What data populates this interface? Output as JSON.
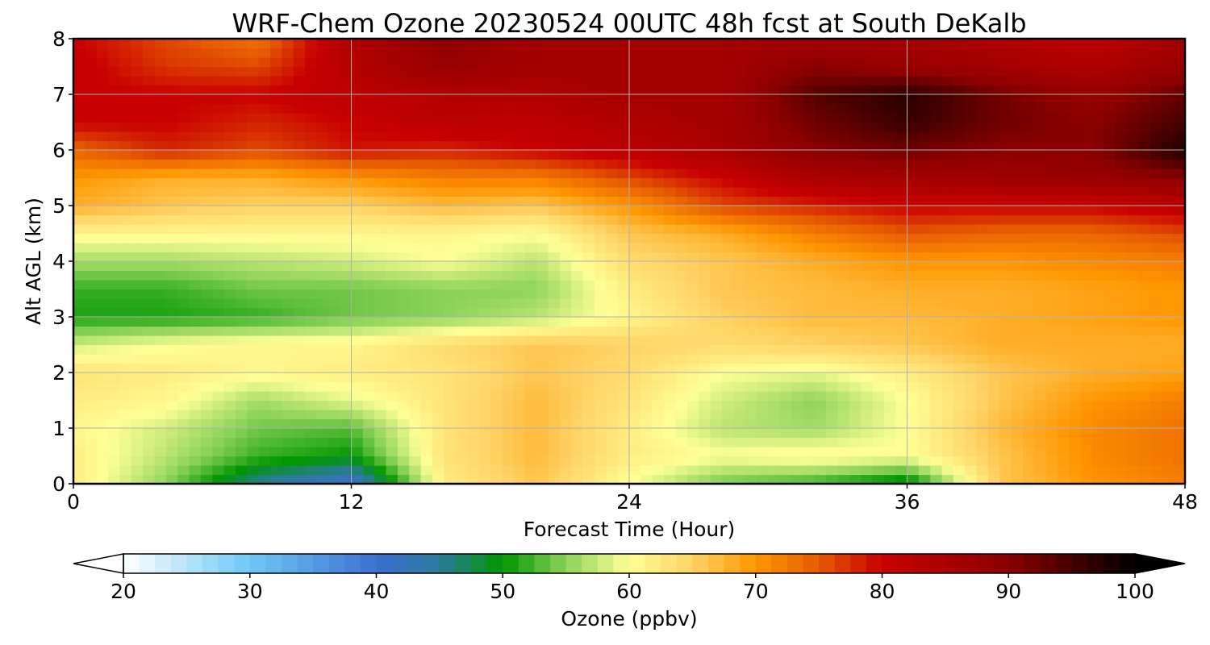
{
  "chart_data": {
    "type": "heatmap",
    "title": "WRF-Chem Ozone  20230524 00UTC 48h fcst at South DeKalb",
    "xlabel": "Forecast Time (Hour)",
    "ylabel": "Alt AGL (km)",
    "xlim": [
      0,
      48
    ],
    "ylim": [
      0,
      8
    ],
    "xticks": [
      "0",
      "12",
      "24",
      "36",
      "48"
    ],
    "yticks": [
      "0",
      "1",
      "2",
      "3",
      "4",
      "5",
      "6",
      "7",
      "8"
    ],
    "grid": true,
    "colorbar": {
      "label": "Ozone  (ppbv)",
      "range": [
        20,
        100
      ],
      "ticks": [
        "20",
        "30",
        "40",
        "50",
        "60",
        "70",
        "80",
        "90",
        "100"
      ],
      "extend": "both",
      "colors": [
        {
          "v": 20,
          "c": "#ffffff"
        },
        {
          "v": 30,
          "c": "#6ec8f5"
        },
        {
          "v": 40,
          "c": "#3d6fd1"
        },
        {
          "v": 45,
          "c": "#2a7a9a"
        },
        {
          "v": 50,
          "c": "#009600"
        },
        {
          "v": 55,
          "c": "#8cd25a"
        },
        {
          "v": 60,
          "c": "#ffff96"
        },
        {
          "v": 65,
          "c": "#ffd264"
        },
        {
          "v": 70,
          "c": "#ff9600"
        },
        {
          "v": 75,
          "c": "#e65a00"
        },
        {
          "v": 80,
          "c": "#c80000"
        },
        {
          "v": 90,
          "c": "#8c0000"
        },
        {
          "v": 100,
          "c": "#000000"
        }
      ]
    },
    "x": [
      0,
      4,
      8,
      12,
      16,
      20,
      24,
      28,
      32,
      36,
      40,
      44,
      48
    ],
    "y": [
      0,
      0.5,
      1,
      1.5,
      2,
      2.5,
      3,
      3.5,
      4,
      4.5,
      5,
      5.5,
      6,
      6.5,
      7,
      7.5,
      8
    ],
    "z": [
      [
        62,
        55,
        45,
        40,
        62,
        66,
        60,
        54,
        52,
        48,
        66,
        70,
        72
      ],
      [
        62,
        57,
        52,
        50,
        63,
        67,
        62,
        60,
        61,
        60,
        66,
        71,
        73
      ],
      [
        61,
        58,
        54,
        53,
        63,
        67,
        62,
        57,
        56,
        60,
        67,
        71,
        73
      ],
      [
        62,
        61,
        56,
        59,
        63,
        67,
        63,
        58,
        55,
        60,
        66,
        70,
        72
      ],
      [
        63,
        62,
        61,
        62,
        63,
        66,
        64,
        60,
        59,
        62,
        66,
        68,
        69
      ],
      [
        58,
        60,
        61,
        61,
        64,
        66,
        65,
        64,
        65,
        66,
        68,
        68,
        68
      ],
      [
        51,
        51,
        52,
        54,
        55,
        57,
        61,
        65,
        67,
        67,
        68,
        69,
        70
      ],
      [
        52,
        52,
        54,
        54,
        55,
        55,
        62,
        66,
        67,
        68,
        68,
        69,
        70
      ],
      [
        56,
        56,
        57,
        58,
        60,
        57,
        64,
        66,
        68,
        70,
        70,
        71,
        72
      ],
      [
        61,
        61,
        61,
        61,
        61,
        60,
        66,
        68,
        72,
        75,
        74,
        74,
        76
      ],
      [
        68,
        66,
        65,
        65,
        67,
        66,
        70,
        76,
        78,
        80,
        80,
        80,
        82
      ],
      [
        70,
        68,
        68,
        70,
        72,
        72,
        76,
        80,
        85,
        86,
        87,
        88,
        90
      ],
      [
        74,
        78,
        76,
        79,
        78,
        80,
        82,
        85,
        90,
        92,
        90,
        90,
        98
      ],
      [
        80,
        80,
        78,
        80,
        82,
        82,
        84,
        86,
        92,
        96,
        92,
        90,
        95
      ],
      [
        80,
        80,
        80,
        82,
        84,
        84,
        86,
        86,
        94,
        97,
        92,
        88,
        93
      ],
      [
        81,
        77,
        76,
        83,
        88,
        86,
        86,
        86,
        90,
        88,
        86,
        84,
        88
      ],
      [
        80,
        76,
        73,
        84,
        90,
        86,
        86,
        86,
        86,
        86,
        84,
        82,
        86
      ]
    ]
  }
}
